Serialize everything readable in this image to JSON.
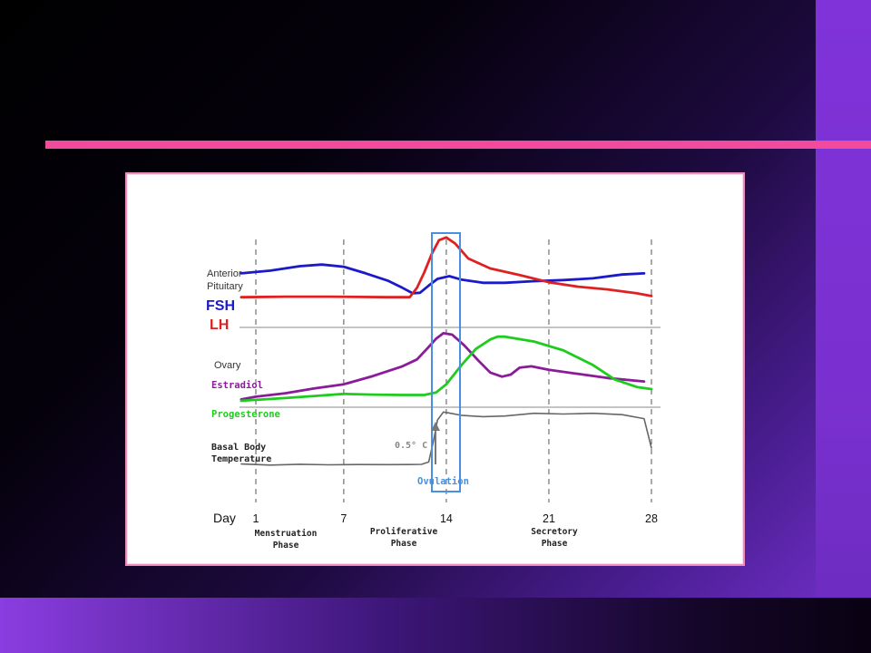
{
  "chart_data": {
    "type": "line",
    "xlabel": "Day",
    "x_ticks": [
      1,
      7,
      14,
      21,
      28
    ],
    "x_tick_labels": [
      "1",
      "7",
      "14",
      "21",
      "28"
    ],
    "xlim": [
      0,
      28
    ],
    "panels": [
      {
        "title_lines": [
          "Anterior",
          "Pituitary"
        ],
        "series": [
          {
            "name": "FSH",
            "color": "#1a1acc",
            "points": [
              [
                0,
                9.6
              ],
              [
                2,
                10.1
              ],
              [
                4,
                10.9
              ],
              [
                5.5,
                11.2
              ],
              [
                7,
                10.8
              ],
              [
                8.5,
                9.6
              ],
              [
                10,
                8.3
              ],
              [
                11,
                7.0
              ],
              [
                11.7,
                6.0
              ],
              [
                12.2,
                6.1
              ],
              [
                12.8,
                7.4
              ],
              [
                13.4,
                8.6
              ],
              [
                14.2,
                9.1
              ],
              [
                15,
                8.5
              ],
              [
                16.5,
                7.9
              ],
              [
                18,
                7.9
              ],
              [
                20,
                8.2
              ],
              [
                22,
                8.4
              ],
              [
                24,
                8.7
              ],
              [
                26,
                9.4
              ],
              [
                27.5,
                9.6
              ]
            ]
          },
          {
            "name": "LH",
            "color": "#e02020",
            "points": [
              [
                0,
                5.3
              ],
              [
                3,
                5.4
              ],
              [
                6,
                5.4
              ],
              [
                8,
                5.35
              ],
              [
                10,
                5.3
              ],
              [
                11.5,
                5.3
              ],
              [
                12,
                7.0
              ],
              [
                12.5,
                9.8
              ],
              [
                13,
                13.1
              ],
              [
                13.5,
                15.6
              ],
              [
                14,
                16.1
              ],
              [
                14.6,
                15.0
              ],
              [
                15.5,
                12.3
              ],
              [
                17,
                10.5
              ],
              [
                19,
                9.3
              ],
              [
                21,
                8.0
              ],
              [
                23,
                7.2
              ],
              [
                25,
                6.7
              ],
              [
                27,
                6.0
              ],
              [
                28,
                5.5
              ]
            ]
          }
        ]
      },
      {
        "title_lines": [
          "Ovary"
        ],
        "series": [
          {
            "name": "Estradiol",
            "color": "#8a1c9a",
            "points": [
              [
                0,
                1.0
              ],
              [
                1,
                1.4
              ],
              [
                3,
                1.9
              ],
              [
                5,
                2.6
              ],
              [
                7,
                3.2
              ],
              [
                9,
                4.4
              ],
              [
                11,
                5.8
              ],
              [
                12,
                6.8
              ],
              [
                12.8,
                8.6
              ],
              [
                13.3,
                9.8
              ],
              [
                13.8,
                10.6
              ],
              [
                14.4,
                10.4
              ],
              [
                15.2,
                8.9
              ],
              [
                16.2,
                6.6
              ],
              [
                17,
                4.9
              ],
              [
                17.8,
                4.3
              ],
              [
                18.4,
                4.6
              ],
              [
                19,
                5.6
              ],
              [
                19.8,
                5.8
              ],
              [
                21,
                5.3
              ],
              [
                23,
                4.7
              ],
              [
                25,
                4.1
              ],
              [
                27.5,
                3.6
              ]
            ]
          },
          {
            "name": "Progesterone",
            "color": "#1ecc1e",
            "points": [
              [
                0,
                0.8
              ],
              [
                3,
                1.2
              ],
              [
                5,
                1.5
              ],
              [
                7,
                1.8
              ],
              [
                9,
                1.7
              ],
              [
                11,
                1.65
              ],
              [
                12.5,
                1.65
              ],
              [
                13.3,
                2.0
              ],
              [
                14,
                3.2
              ],
              [
                15,
                5.9
              ],
              [
                16,
                8.3
              ],
              [
                17,
                9.7
              ],
              [
                17.5,
                10.1
              ],
              [
                18,
                10.1
              ],
              [
                20,
                9.4
              ],
              [
                22,
                8.1
              ],
              [
                24,
                6.0
              ],
              [
                25.5,
                3.9
              ],
              [
                27,
                2.8
              ],
              [
                28,
                2.5
              ]
            ]
          }
        ]
      },
      {
        "title_lines": [
          "Basal Body",
          "Temperature"
        ],
        "series": [
          {
            "name": "Basal Body Temperature",
            "color": "#666666",
            "points": [
              [
                0,
                0.3
              ],
              [
                2,
                0.22
              ],
              [
                4,
                0.28
              ],
              [
                6,
                0.24
              ],
              [
                8,
                0.26
              ],
              [
                10,
                0.25
              ],
              [
                11.5,
                0.26
              ],
              [
                12.3,
                0.27
              ],
              [
                12.8,
                0.45
              ],
              [
                13.1,
                1.9
              ],
              [
                13.4,
                3.6
              ],
              [
                13.8,
                4.2
              ],
              [
                14.3,
                4.1
              ],
              [
                15,
                3.95
              ],
              [
                16.5,
                3.85
              ],
              [
                18,
                3.9
              ],
              [
                20,
                4.1
              ],
              [
                22,
                4.05
              ],
              [
                24,
                4.1
              ],
              [
                26,
                4.0
              ],
              [
                27.5,
                3.7
              ],
              [
                28,
                1.5
              ]
            ]
          }
        ]
      }
    ],
    "annotations": {
      "rise": "0.5° C",
      "ovulation": "Ovulation"
    },
    "phases": [
      {
        "name": "Menstruation",
        "sub": "Phase"
      },
      {
        "name": "Proliferative",
        "sub": "Phase"
      },
      {
        "name": "Secretory",
        "sub": "Phase"
      }
    ],
    "highlight_color": "#4a90e0"
  },
  "colors": {
    "accent_rule": "#f24a9c",
    "frame_border": "#f08dbf"
  }
}
